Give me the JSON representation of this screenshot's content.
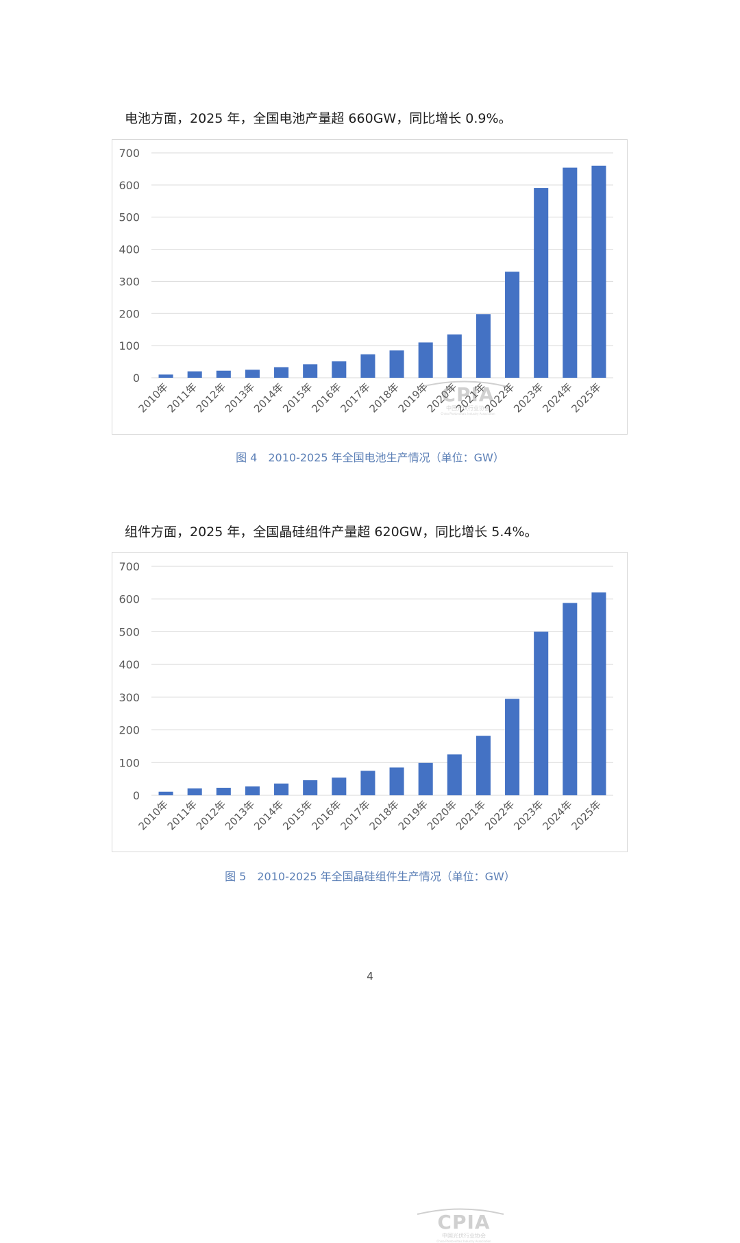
{
  "paragraphs": {
    "cell": "电池方面，2025 年，全国电池产量超 660GW，同比增长 0.9%。",
    "module": "组件方面，2025 年，全国晶硅组件产量超 620GW，同比增长 5.4%。"
  },
  "captions": {
    "fig4": "图 4　2010-2025 年全国电池生产情况（单位：GW）",
    "fig5": "图 5　2010-2025 年全国晶硅组件生产情况（单位：GW）"
  },
  "watermark": {
    "logo_text": "CPIA",
    "org_cn": "中国光伏行业协会",
    "org_en": "China Photovoltaic Industry Association"
  },
  "page_number": "4",
  "colors": {
    "bar": "#4472c4",
    "grid": "#d9d9d9",
    "caption": "#5b7fb6"
  },
  "chart_data": [
    {
      "type": "bar",
      "title": "",
      "xlabel": "",
      "ylabel": "",
      "categories": [
        "2010年",
        "2011年",
        "2012年",
        "2013年",
        "2014年",
        "2015年",
        "2016年",
        "2017年",
        "2018年",
        "2019年",
        "2020年",
        "2021年",
        "2022年",
        "2023年",
        "2024年",
        "2025年"
      ],
      "values": [
        10,
        20,
        22,
        25,
        33,
        42,
        51,
        73,
        85,
        110,
        135,
        198,
        330,
        591,
        654,
        660
      ],
      "ylim": [
        0,
        700
      ],
      "yticks": [
        0,
        100,
        200,
        300,
        400,
        500,
        600,
        700
      ],
      "grid": true,
      "legend": "none"
    },
    {
      "type": "bar",
      "title": "",
      "xlabel": "",
      "ylabel": "",
      "categories": [
        "2010年",
        "2011年",
        "2012年",
        "2013年",
        "2014年",
        "2015年",
        "2016年",
        "2017年",
        "2018年",
        "2019年",
        "2020年",
        "2021年",
        "2022年",
        "2023年",
        "2024年",
        "2025年"
      ],
      "values": [
        11,
        21,
        23,
        27,
        36,
        46,
        54,
        75,
        85,
        99,
        125,
        182,
        295,
        500,
        588,
        620
      ],
      "ylim": [
        0,
        700
      ],
      "yticks": [
        0,
        100,
        200,
        300,
        400,
        500,
        600,
        700
      ],
      "grid": true,
      "legend": "none"
    }
  ]
}
